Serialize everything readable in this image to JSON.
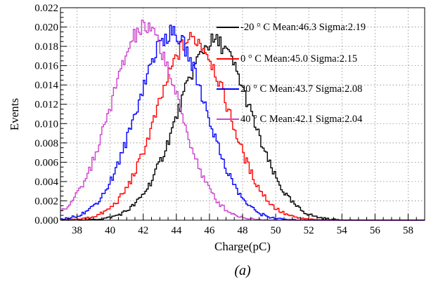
{
  "chart_data": {
    "type": "line",
    "title": "",
    "xlabel": "Charge(pC)",
    "ylabel": "Events",
    "caption": "(a)",
    "xlim": [
      37,
      59
    ],
    "ylim": [
      0,
      0.022
    ],
    "x_ticks": [
      38,
      40,
      42,
      44,
      46,
      48,
      50,
      52,
      54,
      56,
      58
    ],
    "x_tick_labels": [
      "38",
      "40",
      "42",
      "44",
      "46",
      "48",
      "50",
      "52",
      "54",
      "56",
      "58"
    ],
    "y_ticks": [
      0,
      0.002,
      0.004,
      0.006,
      0.008,
      0.01,
      0.012,
      0.014,
      0.016,
      0.018,
      0.02,
      0.022
    ],
    "y_tick_labels": [
      "0.000",
      "0.002",
      "0.004",
      "0.006",
      "0.008",
      "0.010",
      "0.012",
      "0.014",
      "0.016",
      "0.018",
      "0.020",
      "0.022"
    ],
    "grid": true,
    "legend_position": "top-right",
    "series": [
      {
        "name": "-20 ° C Mean:46.3  Sigma:2.19",
        "color": "#000000",
        "mean": 46.3,
        "sigma": 2.19,
        "peak": 0.0185
      },
      {
        "name": " 0 ° C Mean:45.0  Sigma:2.15",
        "color": "#ff0000",
        "mean": 45.0,
        "sigma": 2.15,
        "peak": 0.0188
      },
      {
        "name": "20 ° C Mean:43.7  Sigma:2.08",
        "color": "#0000ff",
        "mean": 43.7,
        "sigma": 2.08,
        "peak": 0.0193
      },
      {
        "name": "40 ° C Mean:42.1  Sigma:2.04",
        "color": "#cc44cc",
        "mean": 42.1,
        "sigma": 2.04,
        "peak": 0.0199
      }
    ]
  }
}
